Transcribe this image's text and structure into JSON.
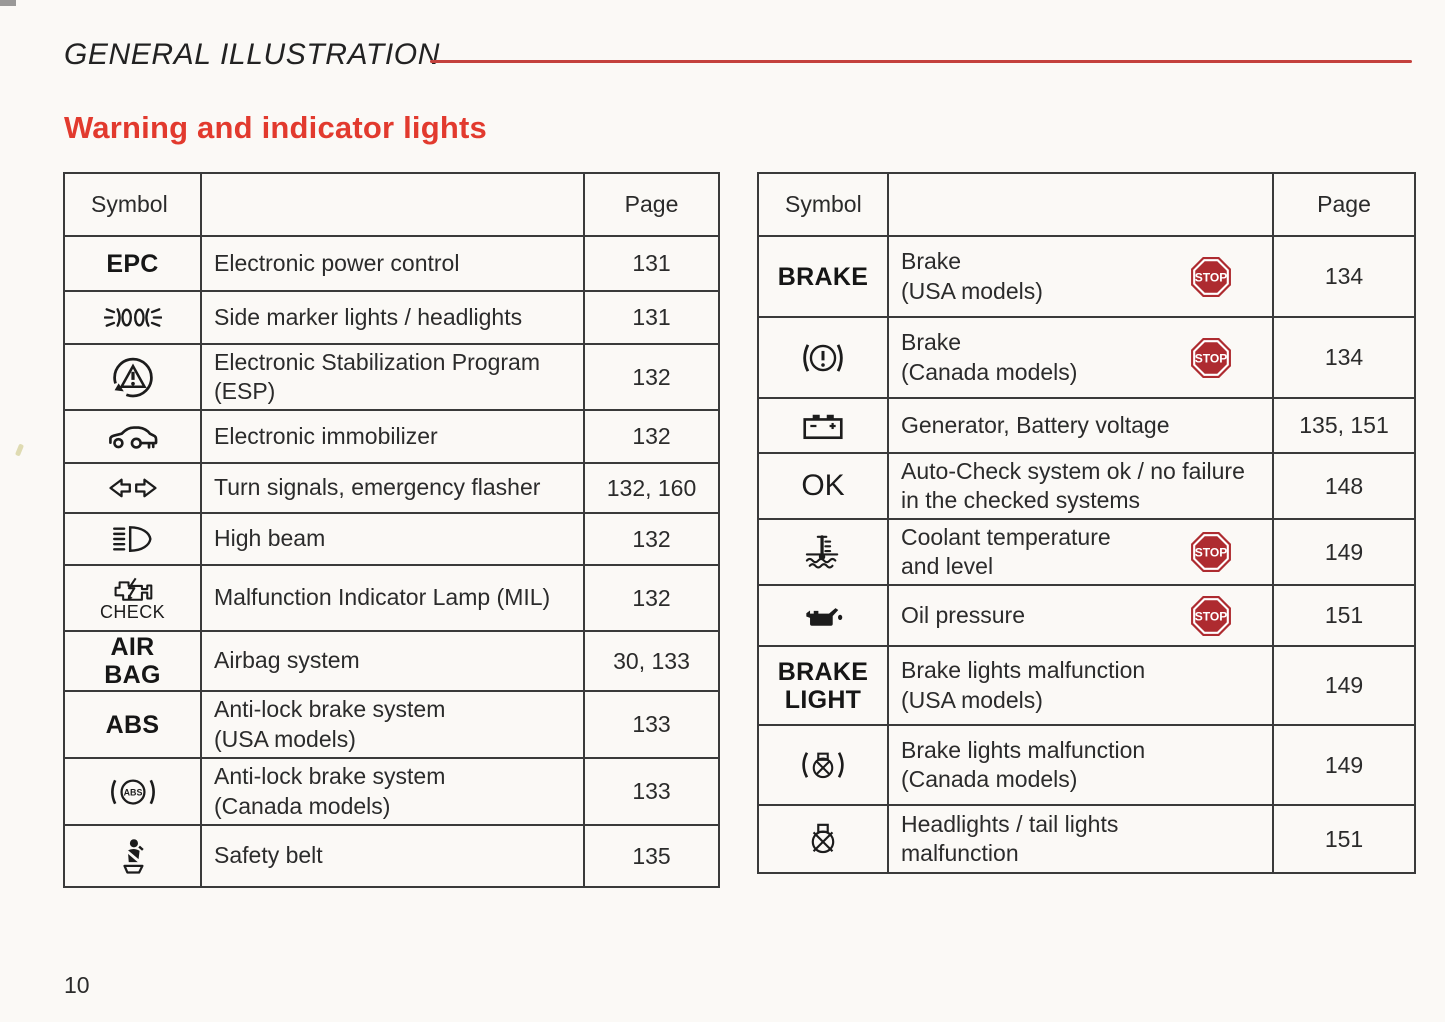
{
  "page": {
    "header_title": "GENERAL ILLUSTRATION",
    "section_title": "Warning and indicator lights",
    "page_number": "10"
  },
  "colors": {
    "accent_red": "#e23a2e",
    "rule_red": "#c4413d",
    "stop_red": "#ae2b30",
    "ink": "#1c1c1c"
  },
  "column_headers": {
    "symbol": "Symbol",
    "page": "Page"
  },
  "stop_badge_label": "STOP",
  "left_table": {
    "rows": [
      {
        "symbol_kind": "text-bold",
        "symbol_lines": [
          "EPC"
        ],
        "icon": null,
        "desc_lines": [
          "Electronic power control"
        ],
        "page": "131",
        "stop": false
      },
      {
        "symbol_kind": "icon",
        "symbol_lines": [],
        "icon": "side-marker-lights",
        "desc_lines": [
          "Side marker lights / headlights"
        ],
        "page": "131",
        "stop": false
      },
      {
        "symbol_kind": "icon",
        "symbol_lines": [],
        "icon": "esp",
        "desc_lines": [
          "Electronic Stabilization Program",
          "(ESP)"
        ],
        "page": "132",
        "stop": false
      },
      {
        "symbol_kind": "icon",
        "symbol_lines": [],
        "icon": "immobilizer",
        "desc_lines": [
          "Electronic immobilizer"
        ],
        "page": "132",
        "stop": false
      },
      {
        "symbol_kind": "icon",
        "symbol_lines": [],
        "icon": "turn-signals",
        "desc_lines": [
          "Turn signals, emergency flasher"
        ],
        "page": "132, 160",
        "stop": false
      },
      {
        "symbol_kind": "icon",
        "symbol_lines": [],
        "icon": "high-beam",
        "desc_lines": [
          "High beam"
        ],
        "page": "132",
        "stop": false
      },
      {
        "symbol_kind": "icon",
        "symbol_lines": [],
        "icon": "check-engine",
        "icon_caption": "CHECK",
        "desc_lines": [
          "Malfunction Indicator Lamp (MIL)"
        ],
        "page": "132",
        "stop": false
      },
      {
        "symbol_kind": "text-bold",
        "symbol_lines": [
          "AIR",
          "BAG"
        ],
        "icon": null,
        "desc_lines": [
          "Airbag system"
        ],
        "page": "30, 133",
        "stop": false
      },
      {
        "symbol_kind": "text-bold",
        "symbol_lines": [
          "ABS"
        ],
        "icon": null,
        "desc_lines": [
          "Anti-lock brake system",
          "(USA models)"
        ],
        "page": "133",
        "stop": false
      },
      {
        "symbol_kind": "icon",
        "symbol_lines": [],
        "icon": "abs-canada",
        "desc_lines": [
          "Anti-lock brake system",
          "(Canada models)"
        ],
        "page": "133",
        "stop": false
      },
      {
        "symbol_kind": "icon",
        "symbol_lines": [],
        "icon": "safety-belt",
        "desc_lines": [
          "Safety belt"
        ],
        "page": "135",
        "stop": false
      }
    ]
  },
  "right_table": {
    "rows": [
      {
        "symbol_kind": "text-bold",
        "symbol_lines": [
          "BRAKE"
        ],
        "icon": null,
        "desc_lines": [
          "Brake",
          "(USA models)"
        ],
        "page": "134",
        "stop": true
      },
      {
        "symbol_kind": "icon",
        "symbol_lines": [],
        "icon": "brake-canada",
        "desc_lines": [
          "Brake",
          "(Canada models)"
        ],
        "page": "134",
        "stop": true
      },
      {
        "symbol_kind": "icon",
        "symbol_lines": [],
        "icon": "battery",
        "desc_lines": [
          "Generator, Battery voltage"
        ],
        "page": "135, 151",
        "stop": false
      },
      {
        "symbol_kind": "text-regular",
        "symbol_lines": [
          "OK"
        ],
        "icon": null,
        "desc_lines": [
          "Auto-Check system ok / no failure",
          "in the checked systems"
        ],
        "page": "148",
        "stop": false
      },
      {
        "symbol_kind": "icon",
        "symbol_lines": [],
        "icon": "coolant",
        "desc_lines": [
          "Coolant temperature",
          "and level"
        ],
        "page": "149",
        "stop": true
      },
      {
        "symbol_kind": "icon",
        "symbol_lines": [],
        "icon": "oil-pressure",
        "desc_lines": [
          "Oil pressure"
        ],
        "page": "151",
        "stop": true
      },
      {
        "symbol_kind": "text-bold",
        "symbol_lines": [
          "BRAKE",
          "LIGHT"
        ],
        "icon": null,
        "desc_lines": [
          "Brake lights malfunction",
          "(USA models)"
        ],
        "page": "149",
        "stop": false
      },
      {
        "symbol_kind": "icon",
        "symbol_lines": [],
        "icon": "brake-light-canada",
        "desc_lines": [
          "Brake lights malfunction",
          "(Canada models)"
        ],
        "page": "149",
        "stop": false
      },
      {
        "symbol_kind": "icon",
        "symbol_lines": [],
        "icon": "headlight-malfunction",
        "desc_lines": [
          "Headlights / tail lights",
          "malfunction"
        ],
        "page": "151",
        "stop": false
      }
    ]
  }
}
